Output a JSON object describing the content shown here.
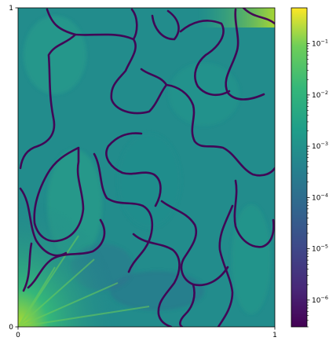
{
  "chart_data": {
    "type": "heatmap",
    "title": "",
    "xlabel": "",
    "ylabel": "",
    "xlim": [
      0,
      1
    ],
    "ylim": [
      0,
      1
    ],
    "x_ticks": [
      {
        "value": 0,
        "label": "0"
      },
      {
        "value": 1,
        "label": "1"
      }
    ],
    "y_ticks": [
      {
        "value": 0,
        "label": "0"
      },
      {
        "value": 1,
        "label": "1"
      }
    ],
    "colormap": "viridis",
    "color_scale": "log",
    "colorbar_range": [
      3e-07,
      0.5
    ],
    "colorbar_ticks": [
      {
        "exp": -1,
        "base": "10",
        "sup": "−1"
      },
      {
        "exp": -2,
        "base": "10",
        "sup": "−2"
      },
      {
        "exp": -3,
        "base": "10",
        "sup": "−3"
      },
      {
        "exp": -4,
        "base": "10",
        "sup": "−4"
      },
      {
        "exp": -5,
        "base": "10",
        "sup": "−5"
      },
      {
        "exp": -6,
        "base": "10",
        "sup": "−6"
      }
    ],
    "grid": false
  }
}
